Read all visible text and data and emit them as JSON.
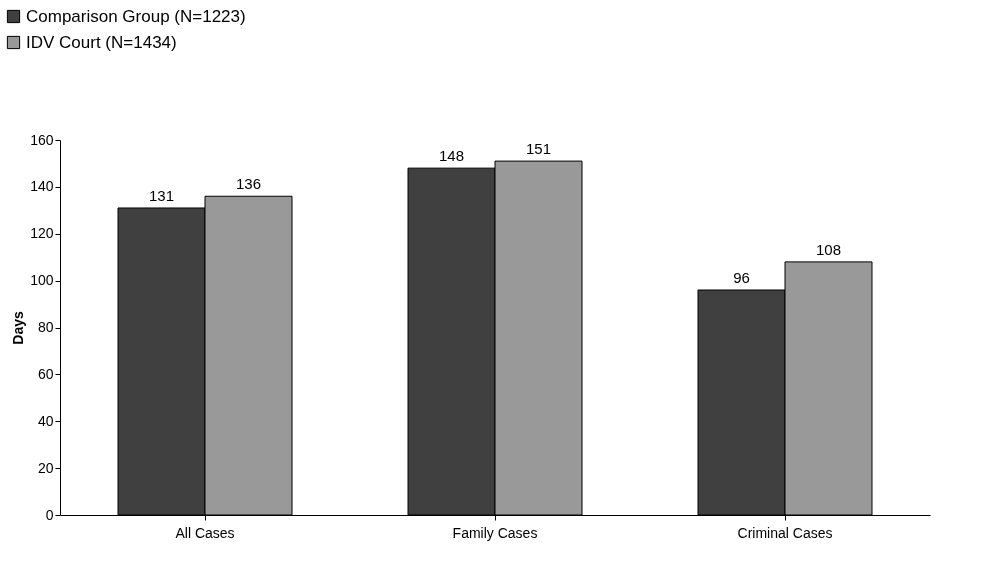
{
  "chart_data": {
    "type": "bar",
    "ylabel": "Days",
    "categories": [
      "All Cases",
      "Family Cases",
      "Criminal Cases"
    ],
    "series": [
      {
        "name": "Comparison Group (N=1223)",
        "color": "#404040",
        "values": [
          131,
          148,
          96
        ]
      },
      {
        "name": "IDV Court (N=1434)",
        "color": "#999999",
        "values": [
          136,
          151,
          108
        ]
      }
    ],
    "ylim": [
      0,
      160
    ],
    "yticks": [
      0,
      20,
      40,
      60,
      80,
      100,
      120,
      140,
      160
    ],
    "data_labels": true,
    "legend": "top left",
    "grid": false
  }
}
